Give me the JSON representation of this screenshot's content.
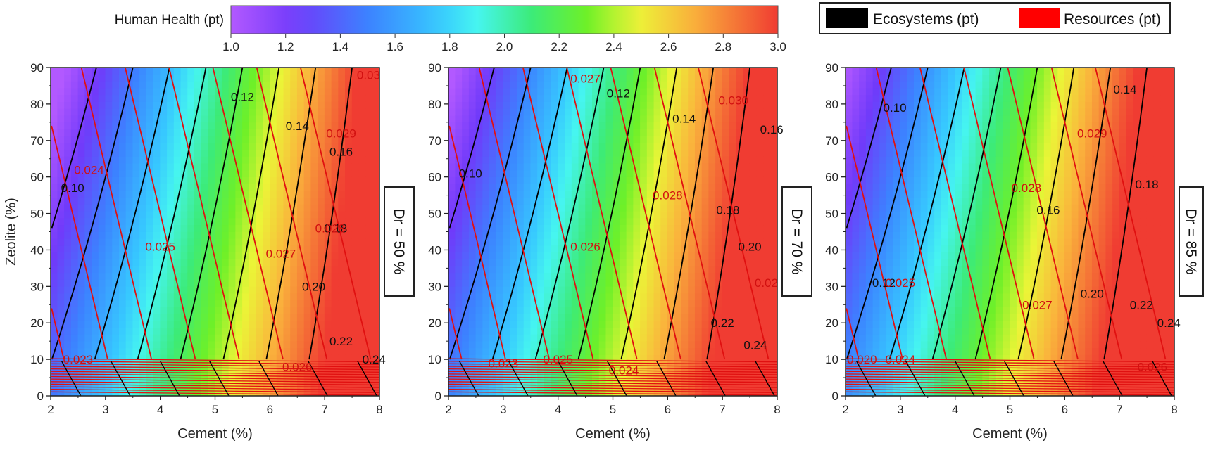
{
  "colorbar": {
    "title": "Human Health (pt)",
    "min": 1.0,
    "max": 3.0,
    "ticks": [
      "1.0",
      "1.2",
      "1.4",
      "1.6",
      "1.8",
      "2.0",
      "2.2",
      "2.4",
      "2.6",
      "2.8",
      "3.0"
    ]
  },
  "legend": {
    "items": [
      {
        "label": "Ecosystems (pt)",
        "color": "#000000"
      },
      {
        "label": "Resources (pt)",
        "color": "#ff0000"
      }
    ]
  },
  "axes": {
    "xlabel": "Cement (%)",
    "ylabel": "Zeolite (%)",
    "x_ticks": [
      "2",
      "3",
      "4",
      "5",
      "6",
      "7",
      "8"
    ],
    "y_ticks": [
      "0",
      "10",
      "20",
      "30",
      "40",
      "50",
      "60",
      "70",
      "80",
      "90"
    ],
    "xlim": [
      2,
      8
    ],
    "ylim": [
      0,
      90
    ]
  },
  "chart_data": [
    {
      "type": "heatmap",
      "panel_label": "Dr = 50 %",
      "xlabel": "Cement (%)",
      "ylabel": "Zeolite (%)",
      "xlim": [
        2,
        8
      ],
      "ylim": [
        0,
        90
      ],
      "hh_range": [
        1.0,
        3.0
      ],
      "ecosystems_contour_labels": [
        {
          "text": "0.10",
          "x": 2.4,
          "y": 57
        },
        {
          "text": "0.12",
          "x": 5.5,
          "y": 82
        },
        {
          "text": "0.14",
          "x": 6.5,
          "y": 74
        },
        {
          "text": "0.16",
          "x": 7.3,
          "y": 67
        },
        {
          "text": "0.18",
          "x": 7.2,
          "y": 46
        },
        {
          "text": "0.20",
          "x": 6.8,
          "y": 30
        },
        {
          "text": "0.22",
          "x": 7.3,
          "y": 15
        },
        {
          "text": "0.24",
          "x": 7.9,
          "y": 10
        }
      ],
      "resources_contour_labels": [
        {
          "text": "0.023",
          "x": 2.5,
          "y": 10
        },
        {
          "text": "0.024",
          "x": 2.7,
          "y": 62
        },
        {
          "text": "0.025",
          "x": 4.0,
          "y": 41
        },
        {
          "text": "0.026",
          "x": 6.5,
          "y": 8
        },
        {
          "text": "0.027",
          "x": 6.2,
          "y": 39
        },
        {
          "text": "0.028",
          "x": 7.1,
          "y": 46
        },
        {
          "text": "0.029",
          "x": 7.3,
          "y": 72
        },
        {
          "text": "0.03",
          "x": 7.8,
          "y": 88
        }
      ]
    },
    {
      "type": "heatmap",
      "panel_label": "Dr = 70 %",
      "xlabel": "Cement (%)",
      "ylabel": "",
      "xlim": [
        2,
        8
      ],
      "ylim": [
        0,
        90
      ],
      "hh_range": [
        1.0,
        3.0
      ],
      "ecosystems_contour_labels": [
        {
          "text": "0.10",
          "x": 2.4,
          "y": 61
        },
        {
          "text": "0.12",
          "x": 5.1,
          "y": 83
        },
        {
          "text": "0.14",
          "x": 6.3,
          "y": 76
        },
        {
          "text": "0.16",
          "x": 7.9,
          "y": 73
        },
        {
          "text": "0.18",
          "x": 7.1,
          "y": 51
        },
        {
          "text": "0.20",
          "x": 7.5,
          "y": 41
        },
        {
          "text": "0.22",
          "x": 7.0,
          "y": 20
        },
        {
          "text": "0.24",
          "x": 7.6,
          "y": 14
        }
      ],
      "resources_contour_labels": [
        {
          "text": "0.023",
          "x": 3.0,
          "y": 9
        },
        {
          "text": "0.024",
          "x": 5.2,
          "y": 7
        },
        {
          "text": "0.025",
          "x": 4.0,
          "y": 10
        },
        {
          "text": "0.026",
          "x": 4.5,
          "y": 41
        },
        {
          "text": "0.027",
          "x": 4.5,
          "y": 87
        },
        {
          "text": "0.028",
          "x": 6.0,
          "y": 55
        },
        {
          "text": "0.030",
          "x": 7.2,
          "y": 81
        },
        {
          "text": "0.02",
          "x": 7.8,
          "y": 31
        }
      ]
    },
    {
      "type": "heatmap",
      "panel_label": "Dr = 85 %",
      "xlabel": "Cement (%)",
      "ylabel": "",
      "xlim": [
        2,
        8
      ],
      "ylim": [
        0,
        90
      ],
      "hh_range": [
        1.0,
        3.0
      ],
      "ecosystems_contour_labels": [
        {
          "text": "0.10",
          "x": 2.9,
          "y": 79
        },
        {
          "text": "0.12",
          "x": 2.7,
          "y": 31
        },
        {
          "text": "0.14",
          "x": 7.1,
          "y": 84
        },
        {
          "text": "0.16",
          "x": 5.7,
          "y": 51
        },
        {
          "text": "0.18",
          "x": 7.5,
          "y": 58
        },
        {
          "text": "0.20",
          "x": 6.5,
          "y": 28
        },
        {
          "text": "0.22",
          "x": 7.4,
          "y": 25
        },
        {
          "text": "0.24",
          "x": 7.9,
          "y": 20
        }
      ],
      "resources_contour_labels": [
        {
          "text": "0.025",
          "x": 3.0,
          "y": 31
        },
        {
          "text": "0.026",
          "x": 7.6,
          "y": 8
        },
        {
          "text": "0.027",
          "x": 5.5,
          "y": 25
        },
        {
          "text": "0.028",
          "x": 5.3,
          "y": 57
        },
        {
          "text": "0.029",
          "x": 6.5,
          "y": 72
        },
        {
          "text": "0.020",
          "x": 2.3,
          "y": 10
        },
        {
          "text": "0.024",
          "x": 3.0,
          "y": 10
        }
      ]
    }
  ]
}
